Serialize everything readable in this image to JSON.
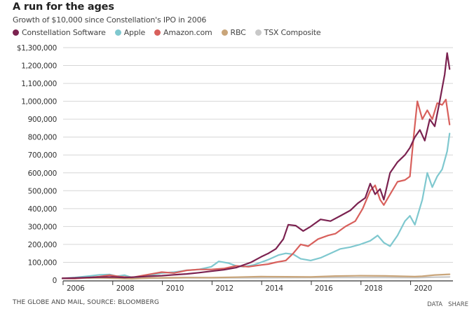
{
  "chart_data": {
    "type": "line",
    "title": "A run for the ages",
    "subtitle": "Growth of $10,000 since Constellation's IPO in 2006",
    "xlabel": "",
    "ylabel": "",
    "xlim": [
      2006.0,
      2021.6
    ],
    "ylim": [
      0,
      1300000
    ],
    "grid": true,
    "legend_position": "top-left",
    "yticks": [
      {
        "value": 0,
        "label": "0"
      },
      {
        "value": 100000,
        "label": "100,000"
      },
      {
        "value": 200000,
        "label": "200,000"
      },
      {
        "value": 300000,
        "label": "300,000"
      },
      {
        "value": 400000,
        "label": "400,000"
      },
      {
        "value": 500000,
        "label": "500,000"
      },
      {
        "value": 600000,
        "label": "600,000"
      },
      {
        "value": 700000,
        "label": "700,000"
      },
      {
        "value": 800000,
        "label": "800,000"
      },
      {
        "value": 900000,
        "label": "900,000"
      },
      {
        "value": 1000000,
        "label": "1,000,000"
      },
      {
        "value": 1100000,
        "label": "1,100,000"
      },
      {
        "value": 1200000,
        "label": "1,200,000"
      },
      {
        "value": 1300000,
        "label": "$1,300,000"
      }
    ],
    "xticks": [
      {
        "value": 2006,
        "label": "2006"
      },
      {
        "value": 2008,
        "label": "2008"
      },
      {
        "value": 2010,
        "label": "2010"
      },
      {
        "value": 2012,
        "label": "2012"
      },
      {
        "value": 2014,
        "label": "2014"
      },
      {
        "value": 2016,
        "label": "2016"
      },
      {
        "value": 2018,
        "label": "2018"
      },
      {
        "value": 2020,
        "label": "2020"
      }
    ],
    "series": [
      {
        "name": "TSX Composite",
        "color": "#c8c8c8",
        "x": [
          2006.0,
          2007.5,
          2008.5,
          2009.5,
          2011,
          2013,
          2015,
          2017,
          2019,
          2020.3,
          2021,
          2021.6
        ],
        "y": [
          10000,
          13000,
          9000,
          11000,
          13000,
          13000,
          14000,
          15000,
          15000,
          14000,
          17000,
          18000
        ]
      },
      {
        "name": "RBC",
        "color": "#c9a57a",
        "x": [
          2006.0,
          2007.5,
          2008.8,
          2009.5,
          2011,
          2012,
          2013,
          2014,
          2015,
          2016,
          2017,
          2018,
          2019,
          2020.2,
          2020.5,
          2021,
          2021.6
        ],
        "y": [
          10000,
          13000,
          8000,
          12000,
          15000,
          14000,
          17000,
          20000,
          19000,
          18000,
          23000,
          25000,
          24000,
          20000,
          22000,
          29000,
          33000
        ]
      },
      {
        "name": "Apple",
        "color": "#7fc8cf",
        "x": [
          2006.0,
          2006.5,
          2007.0,
          2007.5,
          2007.9,
          2008.2,
          2008.5,
          2008.8,
          2009.2,
          2009.6,
          2010.0,
          2010.5,
          2011.0,
          2011.5,
          2012.0,
          2012.3,
          2012.7,
          2013.0,
          2013.3,
          2013.7,
          2014.0,
          2014.3,
          2014.7,
          2015.0,
          2015.3,
          2015.6,
          2016.0,
          2016.4,
          2016.8,
          2017.2,
          2017.6,
          2018.0,
          2018.4,
          2018.7,
          2018.95,
          2019.2,
          2019.5,
          2019.8,
          2020.0,
          2020.2,
          2020.5,
          2020.7,
          2020.9,
          2021.1,
          2021.3,
          2021.5,
          2021.6
        ],
        "y": [
          10000,
          15000,
          22000,
          30000,
          32000,
          22000,
          28000,
          15000,
          20000,
          30000,
          40000,
          45000,
          55000,
          60000,
          75000,
          105000,
          95000,
          80000,
          75000,
          85000,
          100000,
          115000,
          140000,
          150000,
          145000,
          120000,
          110000,
          125000,
          150000,
          175000,
          185000,
          200000,
          220000,
          250000,
          210000,
          190000,
          250000,
          330000,
          360000,
          310000,
          450000,
          600000,
          520000,
          580000,
          620000,
          720000,
          820000
        ]
      },
      {
        "name": "Amazon.com",
        "color": "#d8605c",
        "x": [
          2006.0,
          2006.5,
          2007.0,
          2007.5,
          2007.9,
          2008.3,
          2008.8,
          2009.2,
          2009.6,
          2010.0,
          2010.5,
          2011.0,
          2011.5,
          2012.0,
          2012.5,
          2013.0,
          2013.5,
          2014.0,
          2014.3,
          2014.6,
          2015.0,
          2015.3,
          2015.6,
          2015.9,
          2016.3,
          2016.7,
          2017.0,
          2017.4,
          2017.8,
          2018.1,
          2018.4,
          2018.6,
          2018.8,
          2018.95,
          2019.2,
          2019.5,
          2019.8,
          2020.0,
          2020.15,
          2020.3,
          2020.5,
          2020.7,
          2020.9,
          2021.1,
          2021.3,
          2021.45,
          2021.6
        ],
        "y": [
          10000,
          9000,
          14000,
          20000,
          28000,
          20000,
          15000,
          25000,
          35000,
          45000,
          40000,
          55000,
          60000,
          60000,
          65000,
          80000,
          75000,
          85000,
          90000,
          100000,
          110000,
          150000,
          200000,
          190000,
          230000,
          250000,
          260000,
          300000,
          330000,
          400000,
          500000,
          530000,
          450000,
          420000,
          480000,
          550000,
          560000,
          580000,
          800000,
          1000000,
          900000,
          950000,
          900000,
          990000,
          980000,
          1010000,
          870000
        ]
      },
      {
        "name": "Constellation Software",
        "color": "#7b2250",
        "x": [
          2006.0,
          2006.5,
          2007.0,
          2007.5,
          2008.0,
          2008.5,
          2009.0,
          2009.5,
          2010.0,
          2010.5,
          2011.0,
          2011.5,
          2012.0,
          2012.5,
          2013.0,
          2013.3,
          2013.6,
          2014.0,
          2014.3,
          2014.6,
          2014.9,
          2015.1,
          2015.4,
          2015.7,
          2016.0,
          2016.4,
          2016.8,
          2017.2,
          2017.6,
          2017.9,
          2018.2,
          2018.4,
          2018.6,
          2018.8,
          2018.95,
          2019.2,
          2019.5,
          2019.8,
          2020.0,
          2020.2,
          2020.4,
          2020.6,
          2020.8,
          2021.0,
          2021.2,
          2021.4,
          2021.5,
          2021.6
        ],
        "y": [
          10000,
          12000,
          15000,
          17000,
          18000,
          15000,
          18000,
          22000,
          25000,
          30000,
          35000,
          42000,
          50000,
          58000,
          70000,
          85000,
          100000,
          130000,
          150000,
          175000,
          230000,
          310000,
          305000,
          275000,
          300000,
          340000,
          330000,
          360000,
          390000,
          430000,
          460000,
          540000,
          480000,
          510000,
          450000,
          600000,
          660000,
          700000,
          740000,
          800000,
          840000,
          780000,
          900000,
          860000,
          1000000,
          1150000,
          1270000,
          1180000
        ]
      }
    ]
  },
  "legend": {
    "items": [
      {
        "label": "Constellation Software",
        "color": "#7b2250"
      },
      {
        "label": "Apple",
        "color": "#7fc8cf"
      },
      {
        "label": "Amazon.com",
        "color": "#d8605c"
      },
      {
        "label": "RBC",
        "color": "#c9a57a"
      },
      {
        "label": "TSX Composite",
        "color": "#c8c8c8"
      }
    ]
  },
  "footer": {
    "source": "THE GLOBE AND MAIL, SOURCE: BLOOMBERG",
    "data_link": "DATA",
    "share_link": "SHARE"
  }
}
